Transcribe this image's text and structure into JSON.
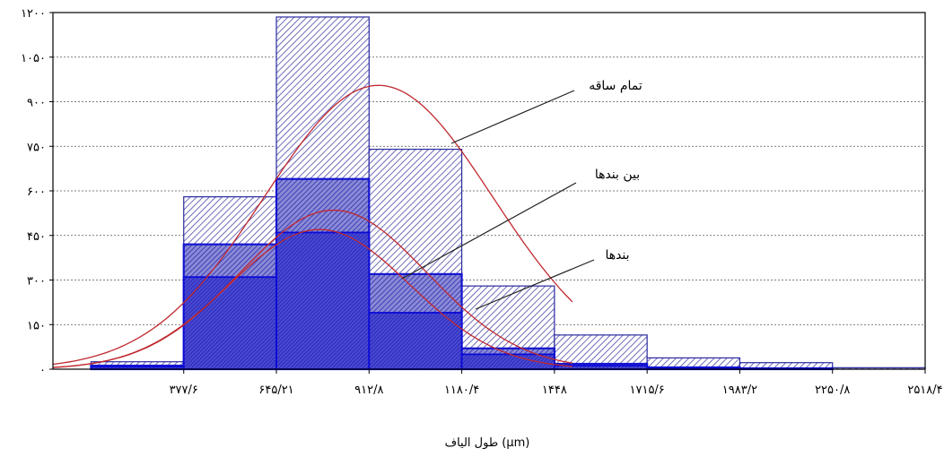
{
  "chart_data": {
    "type": "bar",
    "xlabel": "طول الیاف (µm)",
    "ylim": [
      0,
      1200
    ],
    "xlim": [
      0,
      2518.4
    ],
    "grid": true,
    "y_ticks": [
      "۰",
      "۱۵۰",
      "۳۰۰",
      "۴۵۰",
      "۶۰۰",
      "۷۵۰",
      "۹۰۰",
      "۱۰۵۰",
      "۱۲۰۰"
    ],
    "y_tick_values": [
      0,
      150,
      300,
      450,
      600,
      750,
      900,
      1050,
      1200
    ],
    "x_ticks": [
      "۳۷۷/۶",
      "۶۴۵/۲۱",
      "۹۱۲/۸",
      "۱۱۸۰/۴",
      "۱۴۴۸",
      "۱۷۱۵/۶",
      "۱۹۸۳/۲",
      "۲۲۵۰/۸",
      "۲۵۱۸/۴"
    ],
    "x_tick_values": [
      377.6,
      645.21,
      912.8,
      1180.4,
      1448,
      1715.6,
      1983.2,
      2250.8,
      2518.4
    ],
    "series": [
      {
        "name": "تمام ساقه",
        "bins": [
          {
            "x0": 110,
            "x1": 377.6,
            "y": 25
          },
          {
            "x0": 377.6,
            "x1": 645.2,
            "y": 580
          },
          {
            "x0": 645.2,
            "x1": 912.8,
            "y": 1185
          },
          {
            "x0": 912.8,
            "x1": 1180.4,
            "y": 740
          },
          {
            "x0": 1180.4,
            "x1": 1448,
            "y": 280
          },
          {
            "x0": 1448,
            "x1": 1715.6,
            "y": 115
          },
          {
            "x0": 1715.6,
            "x1": 1983.2,
            "y": 38
          },
          {
            "x0": 1983.2,
            "x1": 2250.8,
            "y": 22
          },
          {
            "x0": 2250.8,
            "x1": 2518.4,
            "y": 5
          }
        ],
        "curve": {
          "mean": 940,
          "sd": 330,
          "peak": 955
        },
        "color": "#4040a8"
      },
      {
        "name": "بین بندها",
        "bins": [
          {
            "x0": 110,
            "x1": 377.6,
            "y": 12
          },
          {
            "x0": 377.6,
            "x1": 645.2,
            "y": 420
          },
          {
            "x0": 645.2,
            "x1": 912.8,
            "y": 640
          },
          {
            "x0": 912.8,
            "x1": 1180.4,
            "y": 320
          },
          {
            "x0": 1180.4,
            "x1": 1448,
            "y": 70
          },
          {
            "x0": 1448,
            "x1": 1715.6,
            "y": 18
          },
          {
            "x0": 1715.6,
            "x1": 1983.2,
            "y": 6
          },
          {
            "x0": 1983.2,
            "x1": 2250.8,
            "y": 3
          },
          {
            "x0": 2250.8,
            "x1": 2518.4,
            "y": 0
          }
        ],
        "curve": {
          "mean": 810,
          "sd": 270,
          "peak": 535
        },
        "color": "#3030b0"
      },
      {
        "name": "بندها",
        "bins": [
          {
            "x0": 110,
            "x1": 377.6,
            "y": 8
          },
          {
            "x0": 377.6,
            "x1": 645.2,
            "y": 310
          },
          {
            "x0": 645.2,
            "x1": 912.8,
            "y": 460
          },
          {
            "x0": 912.8,
            "x1": 1180.4,
            "y": 190
          },
          {
            "x0": 1180.4,
            "x1": 1448,
            "y": 50
          },
          {
            "x0": 1448,
            "x1": 1715.6,
            "y": 12
          },
          {
            "x0": 1715.6,
            "x1": 1983.2,
            "y": 4
          },
          {
            "x0": 1983.2,
            "x1": 2250.8,
            "y": 2
          },
          {
            "x0": 2250.8,
            "x1": 2518.4,
            "y": 0
          }
        ],
        "curve": {
          "mean": 770,
          "sd": 260,
          "peak": 470
        },
        "color": "#2020c0"
      }
    ],
    "annotations": [
      {
        "text": "تمام ساقه",
        "series": "تمام ساقه"
      },
      {
        "text": "بین بندها",
        "series": "بین بندها"
      },
      {
        "text": "بندها",
        "series": "بندها"
      }
    ],
    "curve_color": "#c0282f"
  }
}
